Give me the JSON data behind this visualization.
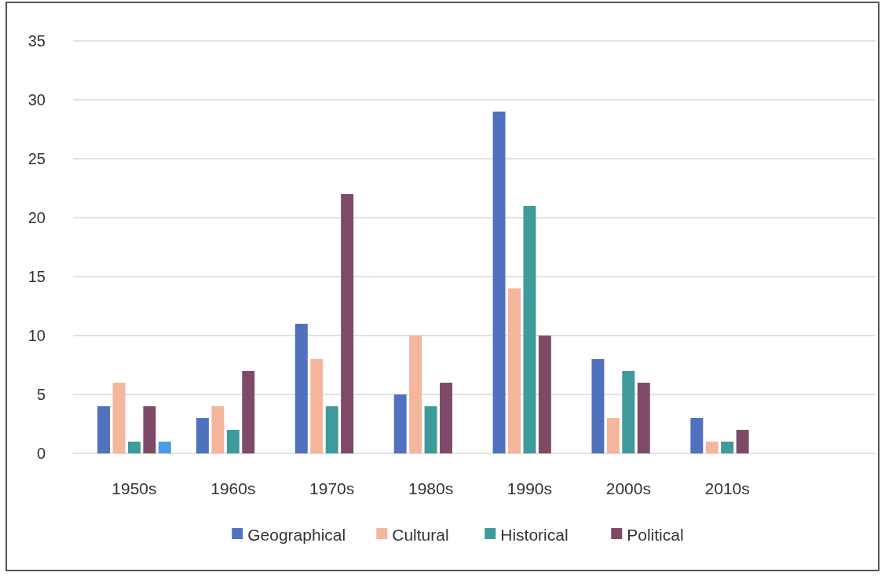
{
  "chart_data": {
    "type": "bar",
    "categories": [
      "1950s",
      "1960s",
      "1970s",
      "1980s",
      "1990s",
      "2000s",
      "2010s",
      null
    ],
    "series": [
      {
        "name": "Geographical",
        "color": "#4f71be",
        "values": [
          4,
          3,
          11,
          5,
          29,
          8,
          3,
          null
        ]
      },
      {
        "name": "Cultural",
        "color": "#f4b69c",
        "values": [
          6,
          4,
          8,
          10,
          14,
          3,
          1,
          null
        ]
      },
      {
        "name": "Historical",
        "color": "#3f9a9c",
        "values": [
          1,
          2,
          4,
          4,
          21,
          7,
          1,
          null
        ]
      },
      {
        "name": "Political",
        "color": "#7f4a68",
        "values": [
          4,
          7,
          22,
          6,
          10,
          6,
          2,
          null
        ]
      },
      {
        "color": "#4a9be8",
        "values": [
          1,
          null,
          null,
          null,
          null,
          null,
          null,
          null
        ]
      }
    ],
    "ylim": [
      0,
      35
    ],
    "yticks": [
      0,
      5,
      10,
      15,
      20,
      25,
      30,
      35
    ],
    "grid": "y",
    "legend": "bottom"
  }
}
